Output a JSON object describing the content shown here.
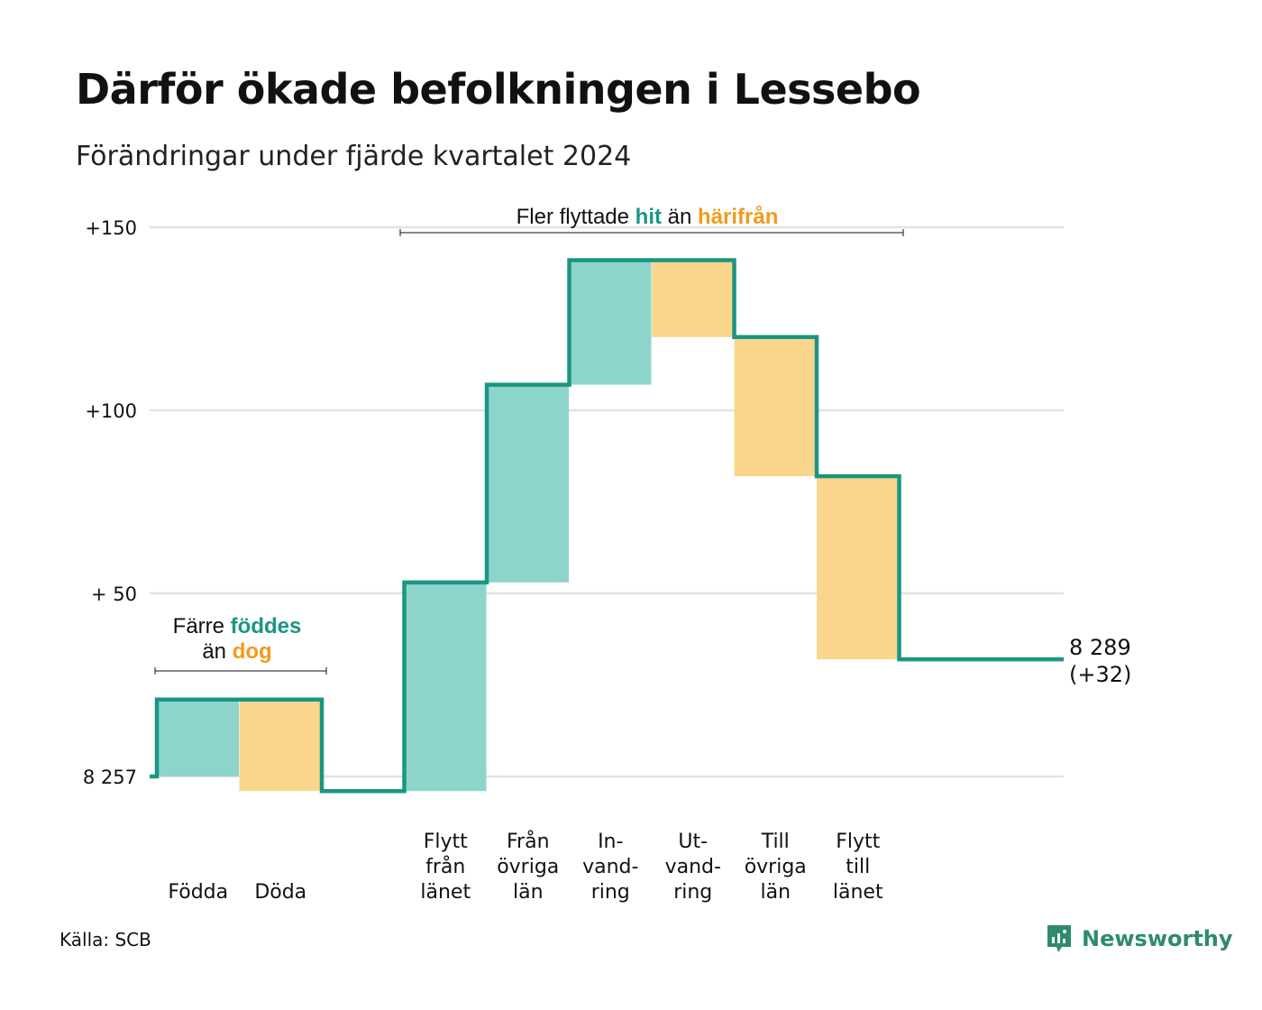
{
  "title": "Därför ökade befolkningen i Lessebo",
  "subtitle": "Förändringar under fjärde kvartalet 2024",
  "source": "Källa: SCB",
  "brand": "Newsworthy",
  "colors": {
    "inflow": "#8dd5cb",
    "outflow": "#fad68d",
    "line": "#1a9683",
    "teal_text": "#1a9683",
    "orange_text": "#f39a1b",
    "grid": "#e3e3e3"
  },
  "chart_data": {
    "type": "waterfall",
    "start_value": 8257,
    "start_label": "8 257",
    "end_value": 8289,
    "end_label": "8 289",
    "end_change_label": "(+32)",
    "y_ticks": [
      "8 257",
      "+ 50",
      "+100",
      "+150"
    ],
    "y_tick_values": [
      0,
      50,
      100,
      150
    ],
    "ylim": [
      -10,
      150
    ],
    "steps": [
      {
        "label_lines": [
          "Födda"
        ],
        "change": 21,
        "kind": "in"
      },
      {
        "label_lines": [
          "Döda"
        ],
        "change": -25,
        "kind": "out"
      },
      {
        "label_lines": [],
        "change": 0,
        "kind": "gap"
      },
      {
        "label_lines": [
          "Flytt",
          "från",
          "länet"
        ],
        "change": 57,
        "kind": "in"
      },
      {
        "label_lines": [
          "Från",
          "övriga",
          "län"
        ],
        "change": 54,
        "kind": "in"
      },
      {
        "label_lines": [
          "In-",
          "vand-",
          "ring"
        ],
        "change": 34,
        "kind": "in"
      },
      {
        "label_lines": [
          "Ut-",
          "vand-",
          "ring"
        ],
        "change": -21,
        "kind": "out"
      },
      {
        "label_lines": [
          "Till",
          "övriga",
          "län"
        ],
        "change": -38,
        "kind": "out"
      },
      {
        "label_lines": [
          "Flytt",
          "till",
          "länet"
        ],
        "change": -50,
        "kind": "out"
      }
    ],
    "annotations": {
      "births": {
        "line1_prefix": "Färre ",
        "line1_bold": "föddes",
        "line2_prefix": "än ",
        "line2_bold": "dog"
      },
      "migration": {
        "prefix": "Fler flyttade ",
        "bold1": "hit",
        "middle": " än ",
        "bold2": "härifrån"
      }
    }
  }
}
